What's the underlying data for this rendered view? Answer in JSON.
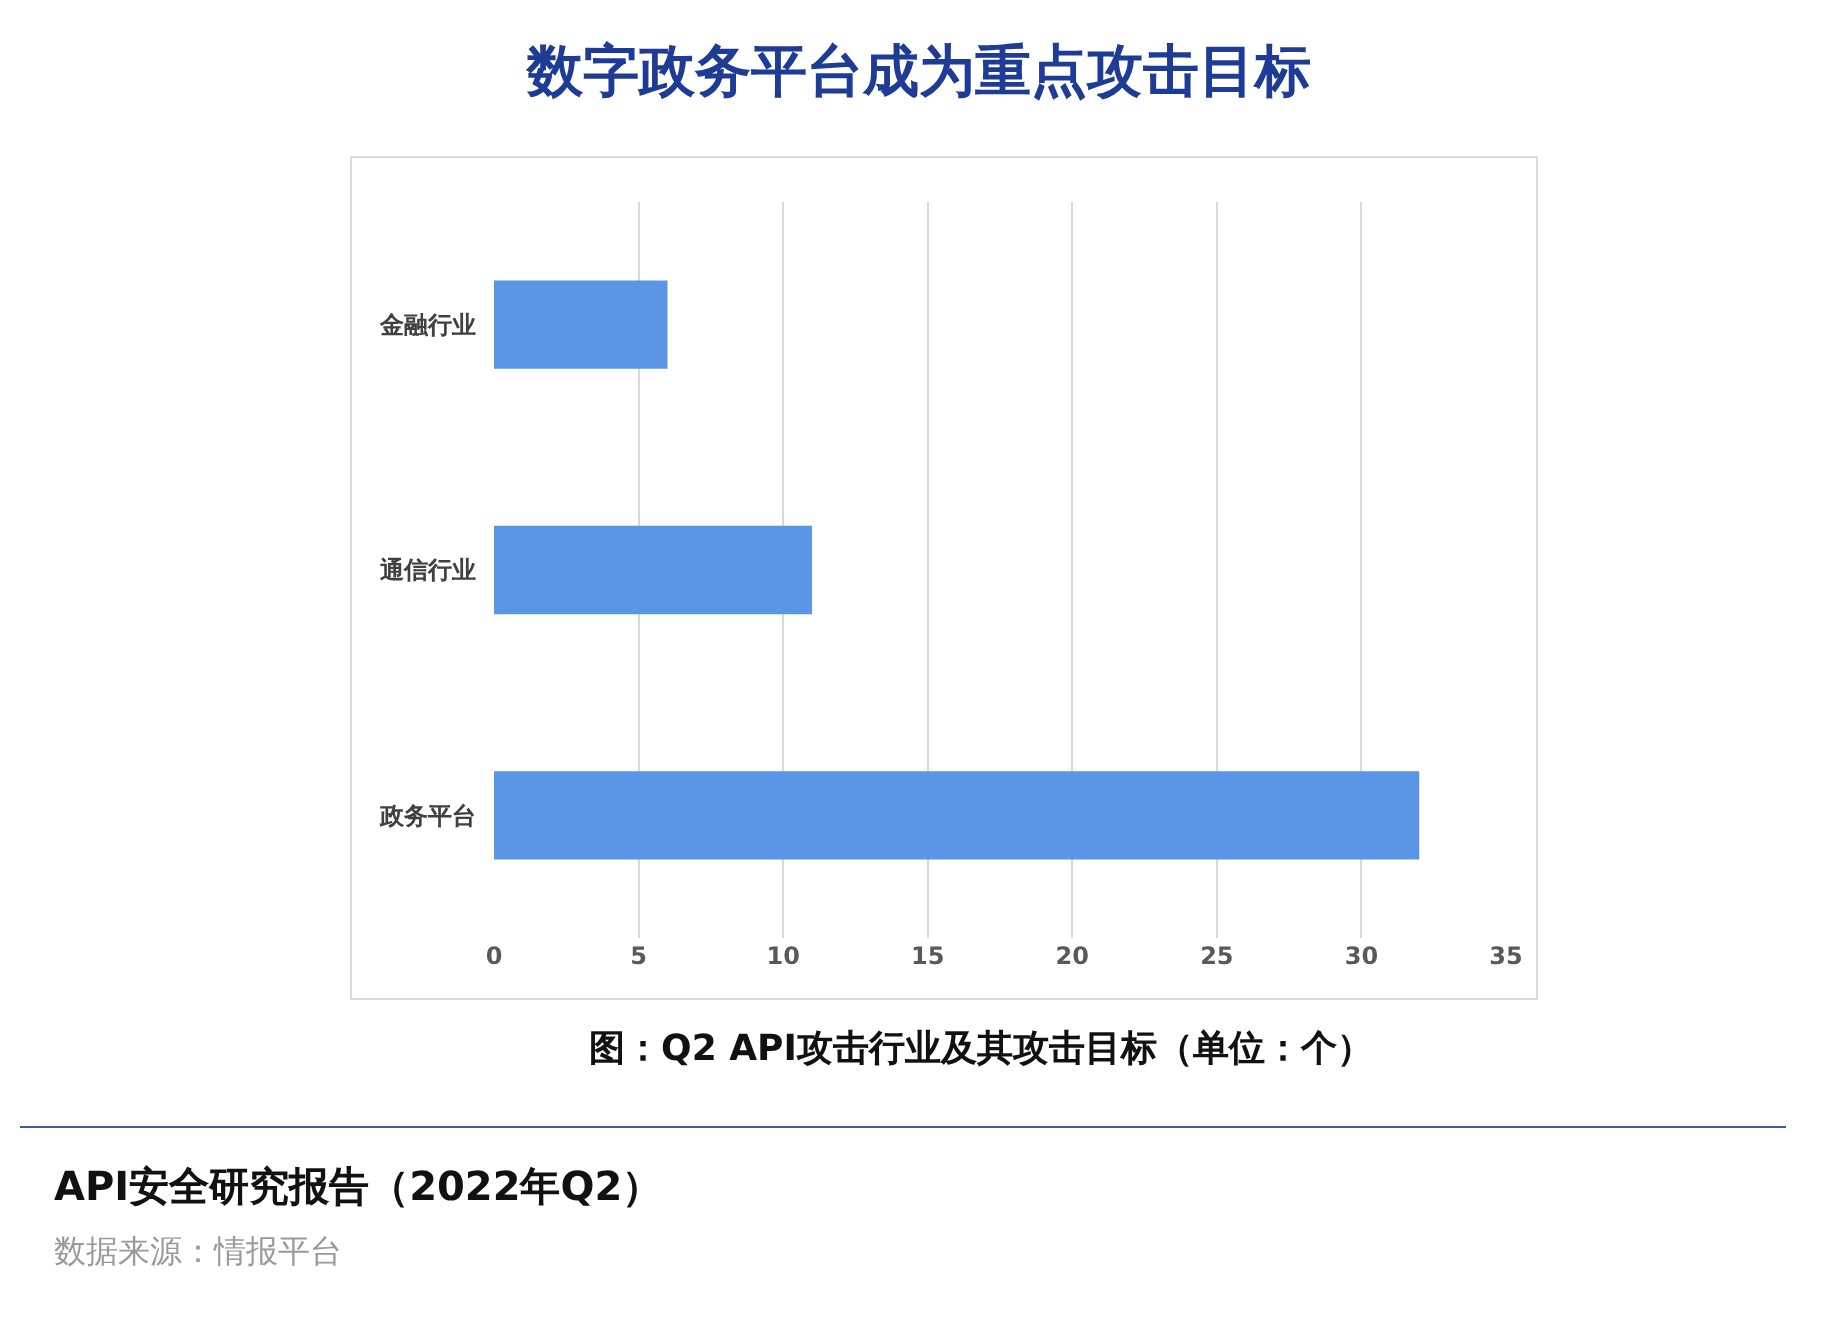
{
  "chart_data": {
    "type": "bar",
    "title": "数字政务平台成为重点攻击目标",
    "orientation": "horizontal",
    "categories": [
      "金融行业",
      "通信行业",
      "政务平台"
    ],
    "values": [
      6,
      11,
      32
    ],
    "color": "#5b95e5",
    "xlim": [
      0,
      35
    ],
    "xticks": [
      0,
      5,
      10,
      15,
      20,
      25,
      30,
      35
    ],
    "grid": "x",
    "annotations": [
      "图：Q2 API攻击行业及其攻击目标（单位：个）",
      "API安全研究报告（2022年Q2）",
      "数据来源：情报平台"
    ]
  }
}
